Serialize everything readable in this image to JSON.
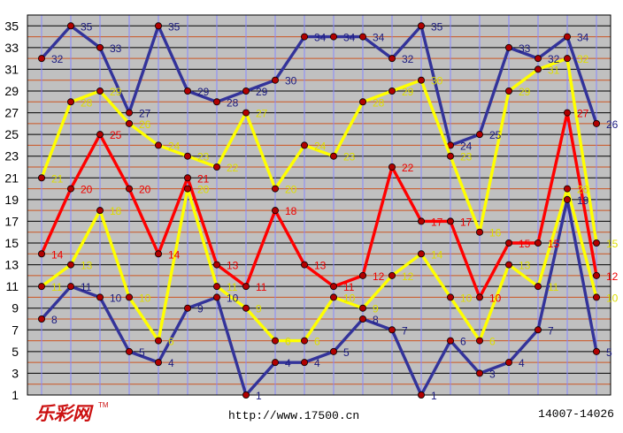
{
  "footer": {
    "logo": "乐彩网",
    "trademark": "TM",
    "url": "http://www.17500.cn",
    "issue_range": "14007-14026"
  },
  "colors": {
    "plot_background": "#c0c0c0",
    "grid_line_odd": "#000000",
    "grid_line_even": "#cc5522",
    "vertical_line": "#8888ff",
    "marker_fill": "#b00000",
    "marker_edge": "#000000"
  },
  "chart_data": {
    "type": "line",
    "x": [
      1,
      2,
      3,
      4,
      5,
      6,
      7,
      8,
      9,
      10,
      11,
      12,
      13,
      14,
      15,
      16,
      17,
      18,
      19,
      20
    ],
    "xlabel": "",
    "ylabel": "",
    "ylim": [
      1,
      36
    ],
    "yticks": [
      1,
      3,
      5,
      7,
      9,
      11,
      13,
      15,
      17,
      19,
      21,
      23,
      25,
      27,
      29,
      31,
      33,
      35
    ],
    "grid": true,
    "series": [
      {
        "color": "#33339a",
        "label_color": "#1a1a80",
        "values": [
          32,
          35,
          33,
          27,
          35,
          29,
          28,
          29,
          30,
          34,
          34,
          34,
          32,
          35,
          24,
          25,
          33,
          32,
          34,
          26
        ]
      },
      {
        "color": "#ffff00",
        "label_color": "#dddd00",
        "values": [
          21,
          28,
          29,
          26,
          24,
          23,
          22,
          27,
          20,
          24,
          23,
          28,
          29,
          30,
          23,
          16,
          29,
          31,
          32,
          15
        ]
      },
      {
        "color": "#ff0000",
        "label_color": "#ee0000",
        "values": [
          14,
          20,
          25,
          20,
          14,
          21,
          13,
          11,
          18,
          13,
          11,
          12,
          22,
          17,
          17,
          10,
          15,
          15,
          27,
          12
        ]
      },
      {
        "color": "#ffff00",
        "label_color": "#dddd00",
        "values": [
          11,
          13,
          18,
          10,
          6,
          20,
          11,
          9,
          6,
          6,
          10,
          9,
          12,
          14,
          10,
          6,
          13,
          11,
          20,
          10
        ]
      },
      {
        "color": "#33339a",
        "label_color": "#1a1a80",
        "values": [
          8,
          11,
          10,
          5,
          4,
          9,
          10,
          1,
          4,
          4,
          5,
          8,
          7,
          1,
          6,
          3,
          4,
          7,
          19,
          5
        ]
      }
    ]
  }
}
